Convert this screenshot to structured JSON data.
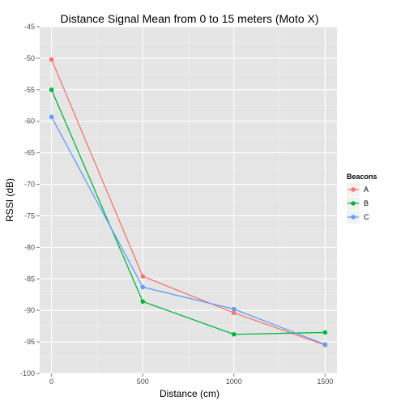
{
  "chart_data": {
    "type": "line",
    "title": "Distance Signal Mean from 0 to 15 meters (Moto X)",
    "xlabel": "Distance (cm)",
    "ylabel": "RSSI (dB)",
    "x": [
      0,
      500,
      1000,
      1500
    ],
    "xlim": [
      -65,
      1565
    ],
    "ylim": [
      -100,
      -45
    ],
    "xticks": [
      0,
      500,
      1000,
      1500
    ],
    "yticks": [
      -100,
      -95,
      -90,
      -85,
      -80,
      -75,
      -70,
      -65,
      -60,
      -55,
      -50,
      -45
    ],
    "grid": true,
    "legend": {
      "title": "Beacons",
      "position": "right"
    },
    "series": [
      {
        "name": "A",
        "color": "#F8766D",
        "values": [
          -50.2,
          -84.6,
          -90.4,
          -95.5
        ]
      },
      {
        "name": "B",
        "color": "#00BA38",
        "values": [
          -55.0,
          -88.6,
          -93.8,
          -93.5
        ]
      },
      {
        "name": "C",
        "color": "#619CFF",
        "values": [
          -59.3,
          -86.3,
          -89.8,
          -95.4
        ]
      }
    ]
  }
}
